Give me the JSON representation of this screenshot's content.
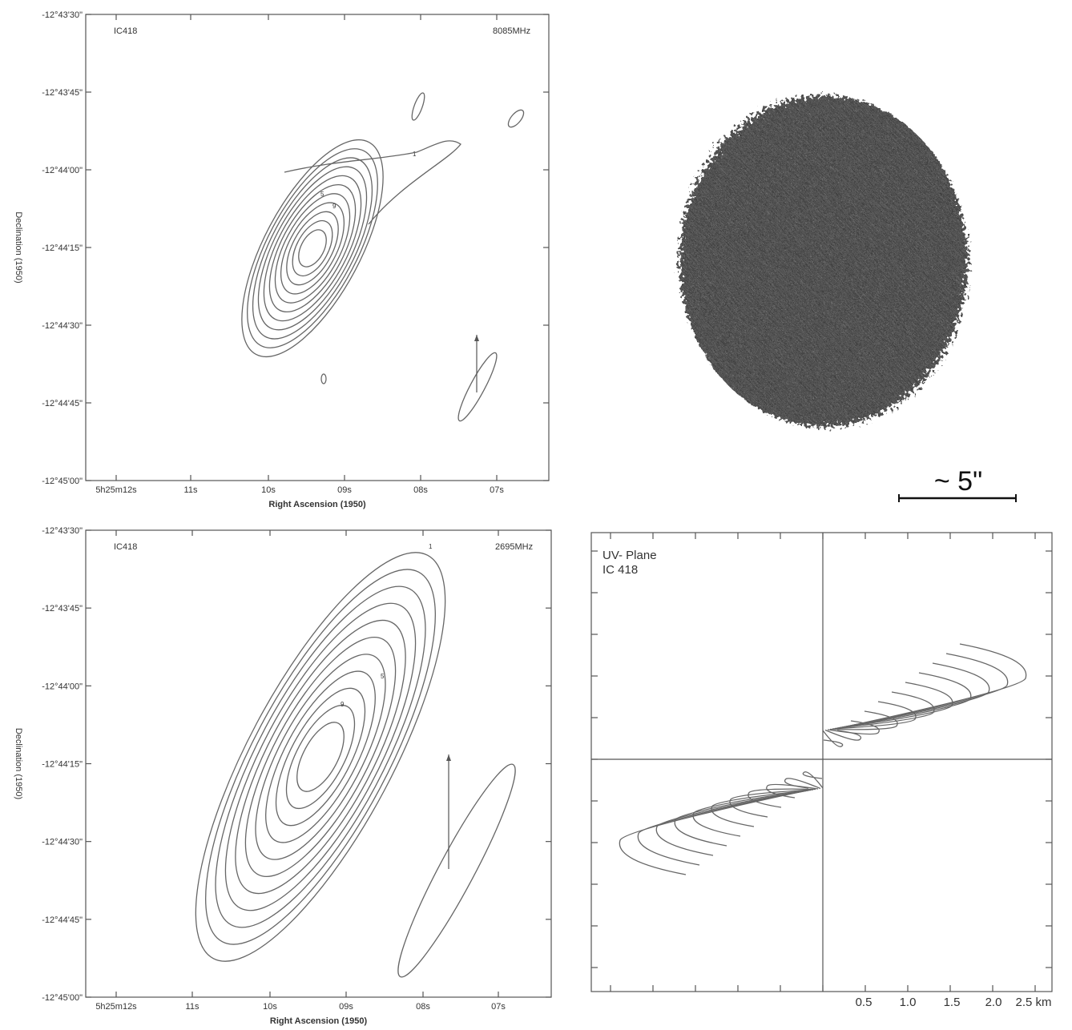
{
  "panels": [
    {
      "source": "IC418",
      "frequency": "8085MHz",
      "x_label": "Right  Ascension (1950)",
      "y_label": "Declination (1950)",
      "y_ticks": [
        "-12°43'30\"",
        "-12°43'45\"",
        "-12°44'00\"",
        "-12°44'15\"",
        "-12°44'30\"",
        "-12°44'45\"",
        "-12°45'00\""
      ],
      "x_ticks": [
        "5h25m12s",
        "11s",
        "10s",
        "09s",
        "08s",
        "07s"
      ],
      "contour_labels": [
        "1",
        "5",
        "9"
      ]
    },
    {
      "source": "IC418",
      "frequency": "2695MHz",
      "x_label": "Right  Ascension (1950)",
      "y_label": "Declination (1950)",
      "y_ticks": [
        "-12°43'30\"",
        "-12°43'45\"",
        "-12°44'00\"",
        "-12°44'15\"",
        "-12°44'30\"",
        "-12°44'45\"",
        "-12°45'00\""
      ],
      "x_ticks": [
        "5h25m12s",
        "11s",
        "10s",
        "09s",
        "08s",
        "07s"
      ],
      "contour_labels": [
        "1",
        "5",
        "9"
      ]
    }
  ],
  "scale_bar": "~ 5\"",
  "uv_plane": {
    "title": "UV- Plane",
    "source": "IC 418",
    "x_ticks": [
      "0.5",
      "1.0",
      "1.5",
      "2.0",
      "2.5 km"
    ]
  }
}
